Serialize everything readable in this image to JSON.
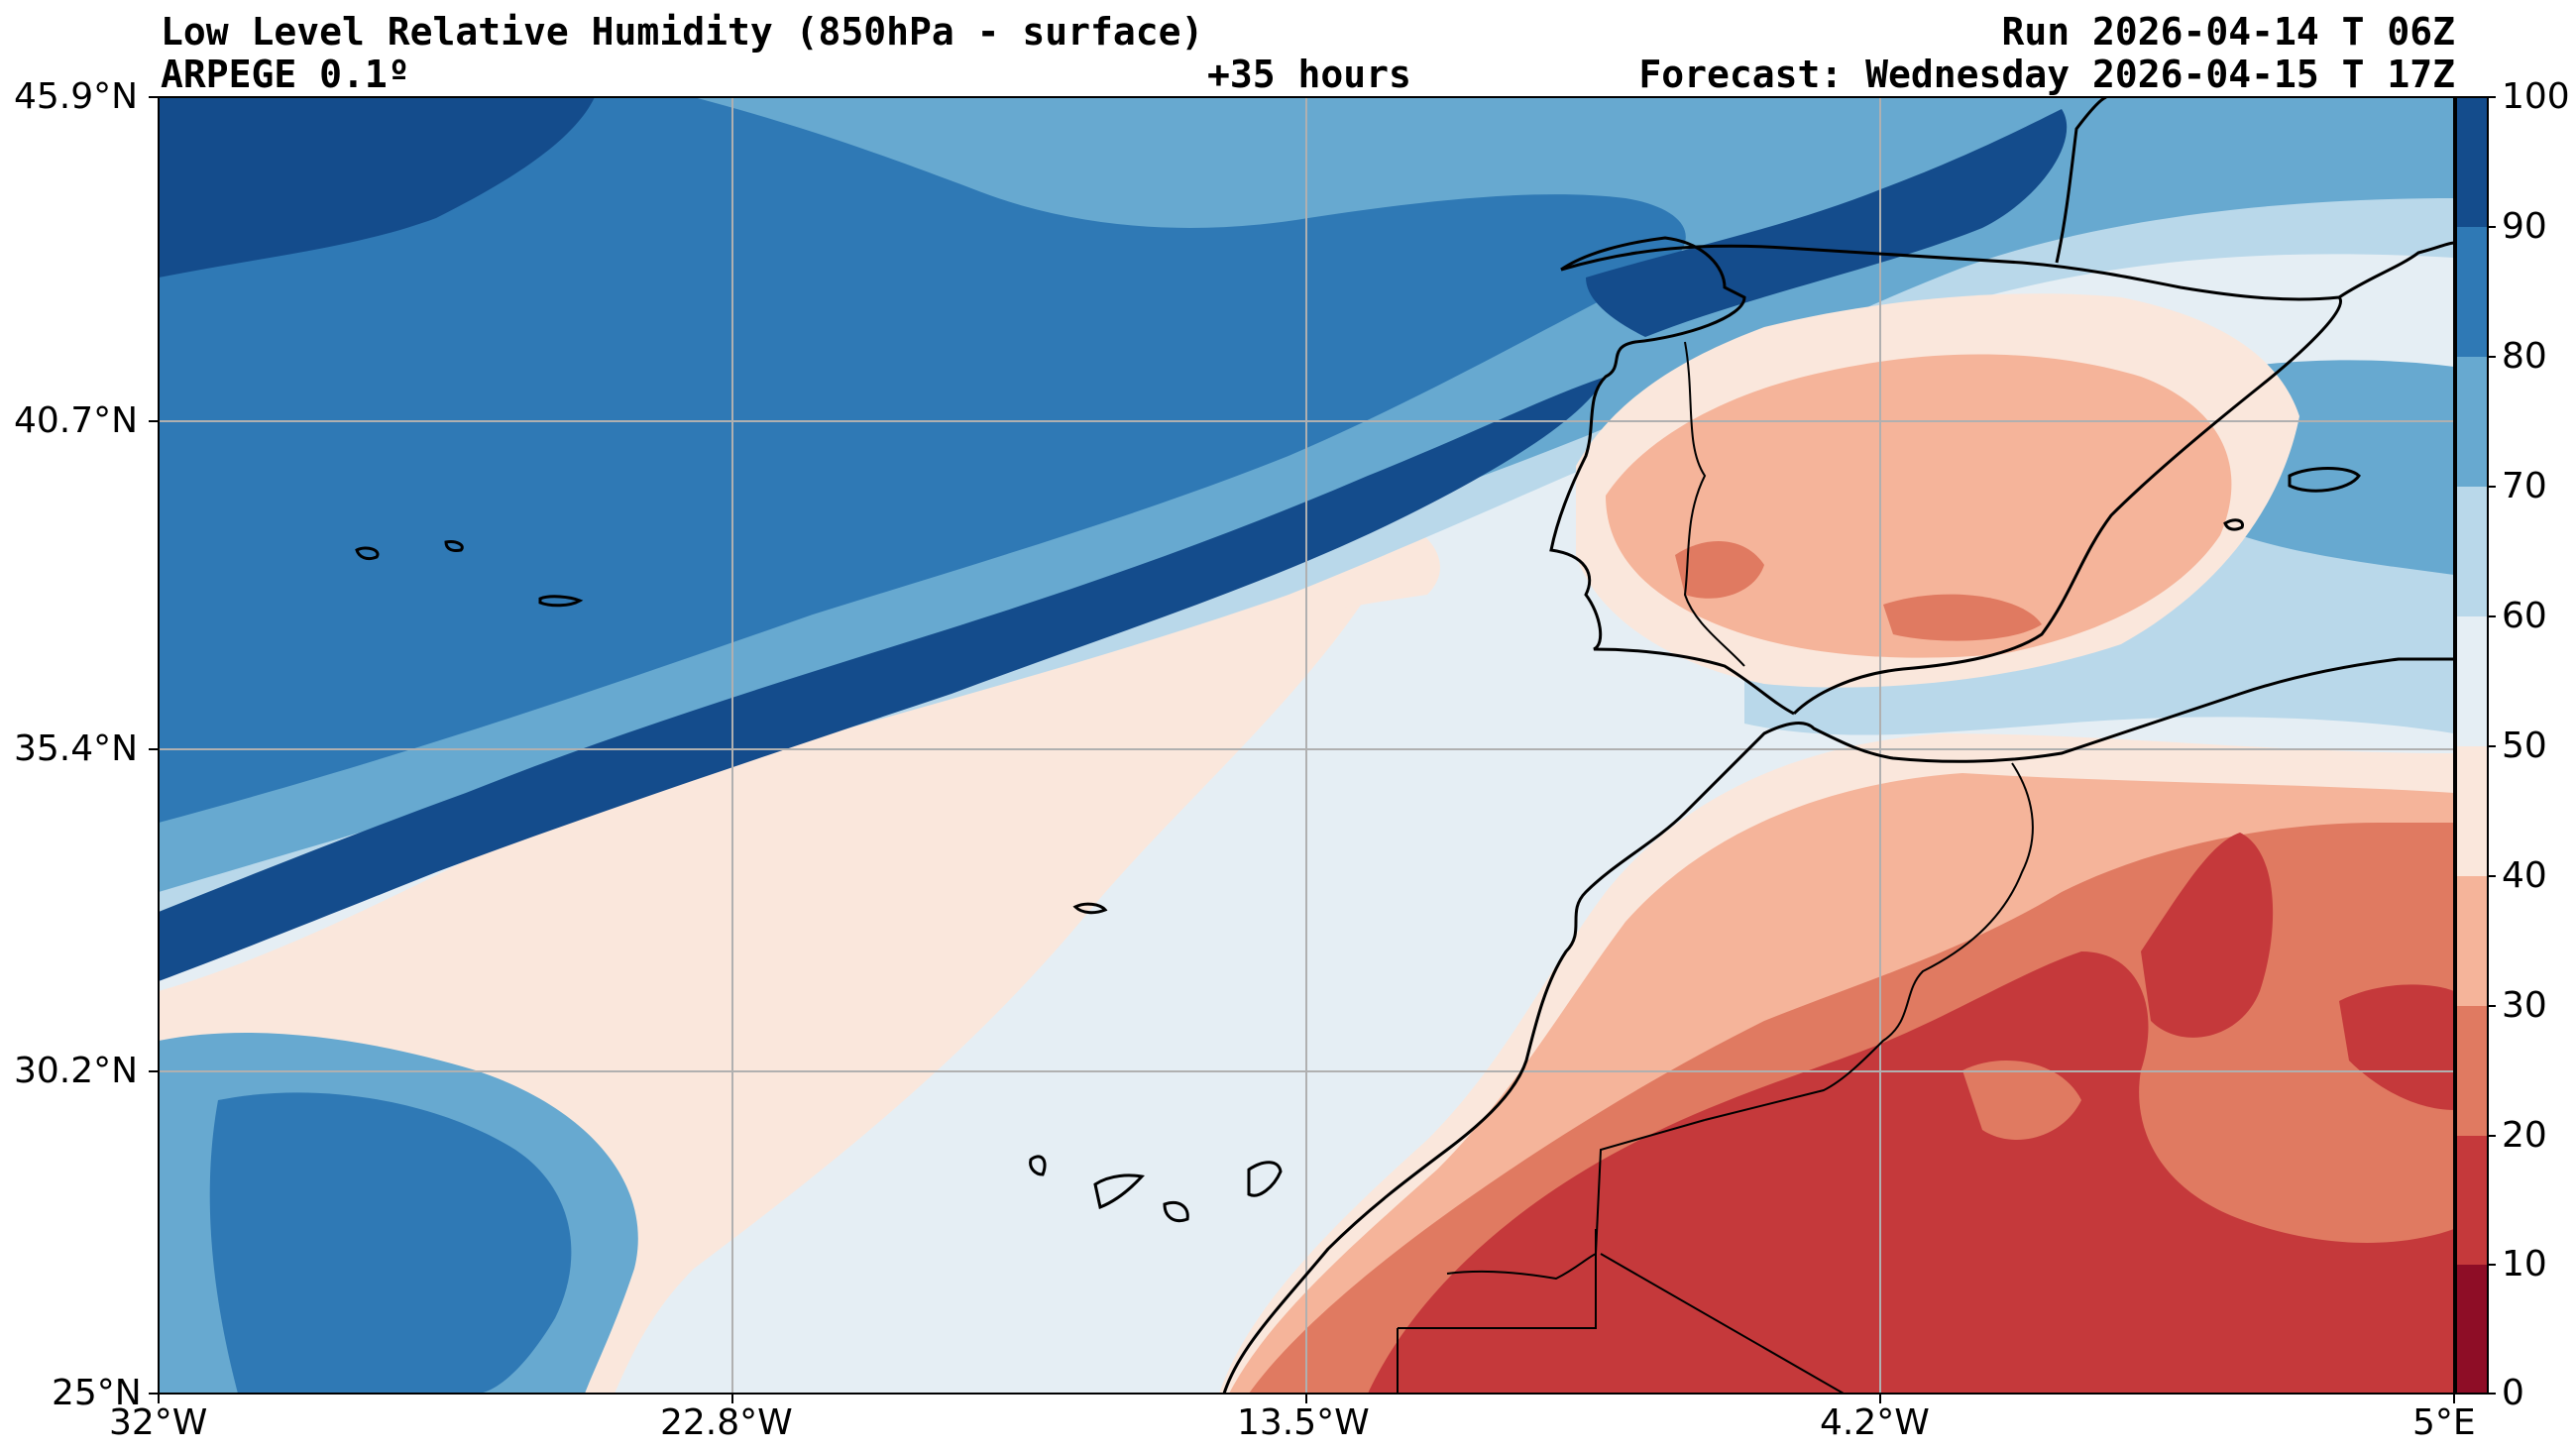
{
  "header": {
    "title": "Low Level Relative Humidity (850hPa - surface)",
    "model": "ARPEGE 0.1º",
    "lead_time": "+35 hours",
    "run": "Run 2026-04-14 T 06Z",
    "forecast": "Forecast: Wednesday 2026-04-15 T 17Z"
  },
  "map": {
    "extent": {
      "lon_min": -32,
      "lon_max": 5,
      "lat_min": 25,
      "lat_max": 45.9
    },
    "lat_ticks": [
      "45.9°N",
      "40.7°N",
      "35.4°N",
      "30.2°N",
      "25°N"
    ],
    "lon_ticks": [
      "32°W",
      "22.8°W",
      "13.5°W",
      "4.2°W",
      "5°E"
    ],
    "gridlines": true
  },
  "colorbar": {
    "ticks": [
      "100",
      "90",
      "80",
      "70",
      "60",
      "50",
      "40",
      "30",
      "20",
      "10",
      "0"
    ],
    "colors": [
      "#144c8c",
      "#2f79b5",
      "#67a9d0",
      "#b9d8ea",
      "#e5eef4",
      "#fae7dc",
      "#f5b49a",
      "#e07a61",
      "#c5393b",
      "#8e0d26"
    ]
  },
  "legend_colors": {
    "c90": "#144c8c",
    "c80": "#2f79b5",
    "c70": "#67a9d0",
    "c60": "#b9d8ea",
    "c50": "#e5eef4",
    "c40": "#fae7dc",
    "c30": "#f5b49a",
    "c20": "#e07a61",
    "c10": "#c5393b",
    "c0": "#8e0d26"
  }
}
